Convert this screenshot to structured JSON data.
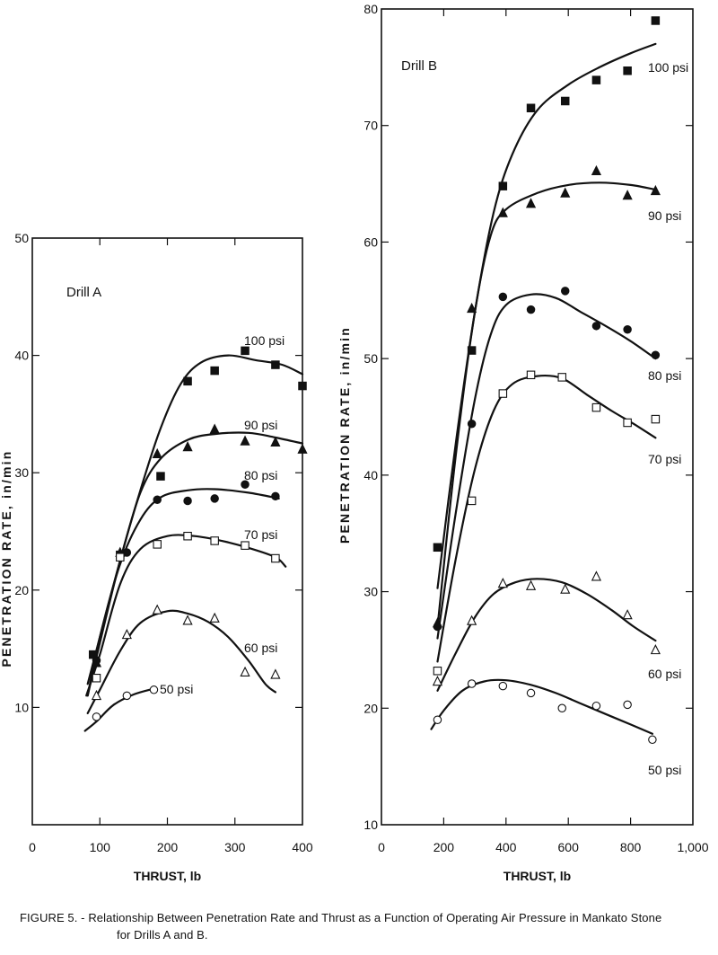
{
  "caption": {
    "line1": "FIGURE 5. - Relationship Between Penetration Rate and Thrust as a Function of Operating Air Pressure in Mankato Stone",
    "line2": "for Drills A and B."
  },
  "chart_data": [
    {
      "type": "scatter",
      "title": "Drill A",
      "xlabel": "THRUST, lb",
      "ylabel": "PENETRATION RATE, in/min",
      "xlim": [
        0,
        400
      ],
      "ylim": [
        0,
        50
      ],
      "xticks": [
        0,
        100,
        200,
        300,
        400
      ],
      "xtick_labels": [
        "0",
        "100",
        "200",
        "300",
        "400"
      ],
      "yticks": [
        10,
        20,
        30,
        40,
        50
      ],
      "ytick_labels": [
        "10",
        "20",
        "30",
        "40",
        "50"
      ],
      "grid": false,
      "series": [
        {
          "name": "100 psi",
          "marker": "square-filled",
          "points": [
            [
              90,
              14.5
            ],
            [
              130,
              23
            ],
            [
              190,
              29.7
            ],
            [
              230,
              37.8
            ],
            [
              270,
              38.7
            ],
            [
              315,
              40.4
            ],
            [
              360,
              39.2
            ],
            [
              400,
              37.4
            ]
          ],
          "curve": [
            [
              82,
              11
            ],
            [
              100,
              15.5
            ],
            [
              130,
              22.5
            ],
            [
              160,
              28.5
            ],
            [
              190,
              33.8
            ],
            [
              220,
              37.6
            ],
            [
              250,
              39.4
            ],
            [
              290,
              40
            ],
            [
              330,
              39.6
            ],
            [
              370,
              39.2
            ],
            [
              400,
              38.4
            ]
          ]
        },
        {
          "name": "90 psi",
          "marker": "triangle-filled",
          "points": [
            [
              95,
              13.8
            ],
            [
              130,
              23.2
            ],
            [
              185,
              31.6
            ],
            [
              230,
              32.2
            ],
            [
              270,
              33.7
            ],
            [
              315,
              32.7
            ],
            [
              360,
              32.6
            ],
            [
              400,
              32
            ]
          ],
          "curve": [
            [
              82,
              12
            ],
            [
              100,
              16
            ],
            [
              130,
              22.5
            ],
            [
              160,
              28.3
            ],
            [
              190,
              31.2
            ],
            [
              230,
              32.8
            ],
            [
              270,
              33.3
            ],
            [
              320,
              33.4
            ],
            [
              360,
              33
            ],
            [
              400,
              32.5
            ]
          ]
        },
        {
          "name": "80 psi",
          "marker": "circle-filled",
          "points": [
            [
              95,
              14
            ],
            [
              140,
              23.2
            ],
            [
              185,
              27.7
            ],
            [
              230,
              27.6
            ],
            [
              270,
              27.8
            ],
            [
              315,
              29
            ],
            [
              360,
              28
            ]
          ],
          "curve": [
            [
              82,
              11
            ],
            [
              100,
              16
            ],
            [
              130,
              22.2
            ],
            [
              160,
              26
            ],
            [
              190,
              27.9
            ],
            [
              230,
              28.5
            ],
            [
              270,
              28.6
            ],
            [
              320,
              28.3
            ],
            [
              365,
              27.8
            ]
          ]
        },
        {
          "name": "70 psi",
          "marker": "square-open",
          "points": [
            [
              95,
              12.5
            ],
            [
              130,
              22.8
            ],
            [
              185,
              23.9
            ],
            [
              230,
              24.6
            ],
            [
              270,
              24.2
            ],
            [
              315,
              23.8
            ],
            [
              360,
              22.7
            ]
          ],
          "curve": [
            [
              80,
              11
            ],
            [
              100,
              14.5
            ],
            [
              130,
              20.5
            ],
            [
              160,
              23.5
            ],
            [
              200,
              24.6
            ],
            [
              240,
              24.6
            ],
            [
              280,
              24.2
            ],
            [
              320,
              23.6
            ],
            [
              360,
              22.8
            ],
            [
              375,
              22
            ]
          ]
        },
        {
          "name": "60 psi",
          "marker": "triangle-open",
          "points": [
            [
              95,
              11
            ],
            [
              140,
              16.2
            ],
            [
              185,
              18.3
            ],
            [
              230,
              17.4
            ],
            [
              270,
              17.6
            ],
            [
              315,
              13
            ],
            [
              360,
              12.8
            ]
          ],
          "curve": [
            [
              82,
              9.5
            ],
            [
              100,
              11.5
            ],
            [
              130,
              14.8
            ],
            [
              160,
              17.2
            ],
            [
              200,
              18.2
            ],
            [
              230,
              18
            ],
            [
              260,
              17.3
            ],
            [
              290,
              16
            ],
            [
              320,
              14
            ],
            [
              345,
              12
            ],
            [
              360,
              11.3
            ]
          ]
        },
        {
          "name": "50 psi",
          "marker": "circle-open",
          "points": [
            [
              95,
              9.2
            ],
            [
              140,
              11
            ],
            [
              180,
              11.5
            ]
          ],
          "curve": [
            [
              78,
              8
            ],
            [
              95,
              8.8
            ],
            [
              120,
              10.2
            ],
            [
              150,
              11.1
            ],
            [
              180,
              11.6
            ]
          ]
        }
      ]
    },
    {
      "type": "scatter",
      "title": "Drill B",
      "xlabel": "THRUST, lb",
      "ylabel": "PENETRATION RATE, in/min",
      "xlim": [
        0,
        1000
      ],
      "ylim": [
        10,
        80
      ],
      "xticks": [
        0,
        200,
        400,
        600,
        800,
        1000
      ],
      "xtick_labels": [
        "0",
        "200",
        "400",
        "600",
        "800",
        "1,000"
      ],
      "yticks": [
        10,
        20,
        30,
        40,
        50,
        60,
        70,
        80
      ],
      "ytick_labels": [
        "10",
        "20",
        "30",
        "40",
        "50",
        "60",
        "70",
        "80"
      ],
      "grid": false,
      "series": [
        {
          "name": "100 psi",
          "marker": "square-filled",
          "points": [
            [
              180,
              33.8
            ],
            [
              290,
              50.7
            ],
            [
              390,
              64.8
            ],
            [
              480,
              71.5
            ],
            [
              590,
              72.1
            ],
            [
              690,
              73.9
            ],
            [
              790,
              74.7
            ],
            [
              880,
              79
            ]
          ],
          "curve": [
            [
              180,
              30.3
            ],
            [
              240,
              43
            ],
            [
              300,
              54
            ],
            [
              360,
              62.5
            ],
            [
              420,
              67.5
            ],
            [
              500,
              71.3
            ],
            [
              600,
              73.5
            ],
            [
              700,
              75
            ],
            [
              800,
              76.2
            ],
            [
              880,
              77
            ]
          ]
        },
        {
          "name": "90 psi",
          "marker": "triangle-filled",
          "points": [
            [
              180,
              27.3
            ],
            [
              290,
              54.3
            ],
            [
              390,
              62.5
            ],
            [
              480,
              63.3
            ],
            [
              590,
              64.2
            ],
            [
              690,
              66.1
            ],
            [
              790,
              64
            ],
            [
              880,
              64.4
            ]
          ],
          "curve": [
            [
              180,
              27
            ],
            [
              240,
              42
            ],
            [
              300,
              54
            ],
            [
              350,
              60.5
            ],
            [
              400,
              62.8
            ],
            [
              500,
              64.2
            ],
            [
              600,
              64.9
            ],
            [
              700,
              65.1
            ],
            [
              800,
              64.9
            ],
            [
              880,
              64.5
            ]
          ]
        },
        {
          "name": "80 psi",
          "marker": "circle-filled",
          "points": [
            [
              180,
              27
            ],
            [
              290,
              44.4
            ],
            [
              390,
              55.3
            ],
            [
              480,
              54.2
            ],
            [
              590,
              55.8
            ],
            [
              690,
              52.8
            ],
            [
              790,
              52.5
            ],
            [
              880,
              50.3
            ]
          ],
          "curve": [
            [
              180,
              26
            ],
            [
              240,
              37
            ],
            [
              300,
              46.5
            ],
            [
              350,
              52
            ],
            [
              400,
              54.6
            ],
            [
              480,
              55.5
            ],
            [
              560,
              55.2
            ],
            [
              640,
              54
            ],
            [
              720,
              52.8
            ],
            [
              800,
              51.5
            ],
            [
              880,
              50
            ]
          ]
        },
        {
          "name": "70 psi",
          "marker": "square-open",
          "points": [
            [
              180,
              23.2
            ],
            [
              290,
              37.8
            ],
            [
              390,
              47
            ],
            [
              480,
              48.6
            ],
            [
              580,
              48.4
            ],
            [
              690,
              45.8
            ],
            [
              790,
              44.5
            ],
            [
              880,
              44.8
            ]
          ],
          "curve": [
            [
              180,
              24
            ],
            [
              240,
              33
            ],
            [
              300,
              40.5
            ],
            [
              360,
              45.5
            ],
            [
              420,
              47.8
            ],
            [
              500,
              48.5
            ],
            [
              580,
              48.3
            ],
            [
              660,
              46.9
            ],
            [
              740,
              45.5
            ],
            [
              810,
              44.4
            ],
            [
              880,
              43.2
            ]
          ]
        },
        {
          "name": "60 psi",
          "marker": "triangle-open",
          "points": [
            [
              180,
              22.3
            ],
            [
              290,
              27.5
            ],
            [
              390,
              30.7
            ],
            [
              480,
              30.5
            ],
            [
              590,
              30.2
            ],
            [
              690,
              31.3
            ],
            [
              790,
              28
            ],
            [
              880,
              25
            ]
          ],
          "curve": [
            [
              180,
              21.5
            ],
            [
              240,
              24.8
            ],
            [
              300,
              27.8
            ],
            [
              360,
              29.8
            ],
            [
              430,
              30.8
            ],
            [
              500,
              31.1
            ],
            [
              580,
              30.8
            ],
            [
              660,
              29.8
            ],
            [
              740,
              28.4
            ],
            [
              810,
              27
            ],
            [
              880,
              25.8
            ]
          ]
        },
        {
          "name": "50 psi",
          "marker": "circle-open",
          "points": [
            [
              180,
              19
            ],
            [
              290,
              22.1
            ],
            [
              390,
              21.9
            ],
            [
              480,
              21.3
            ],
            [
              580,
              20
            ],
            [
              690,
              20.2
            ],
            [
              790,
              20.3
            ],
            [
              870,
              17.3
            ]
          ],
          "curve": [
            [
              160,
              18.2
            ],
            [
              200,
              19.8
            ],
            [
              260,
              21.5
            ],
            [
              330,
              22.3
            ],
            [
              400,
              22.4
            ],
            [
              480,
              22
            ],
            [
              560,
              21.3
            ],
            [
              640,
              20.4
            ],
            [
              720,
              19.5
            ],
            [
              800,
              18.6
            ],
            [
              870,
              17.8
            ]
          ]
        }
      ]
    }
  ]
}
